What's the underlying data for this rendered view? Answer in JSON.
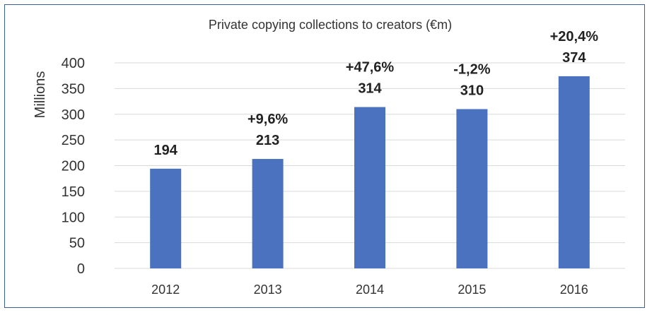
{
  "chart_data": {
    "type": "bar",
    "title": "Private copying collections to creators (€m)",
    "ylabel": "Millions",
    "xlabel": "",
    "categories": [
      "2012",
      "2013",
      "2014",
      "2015",
      "2016"
    ],
    "values": [
      194,
      213,
      314,
      310,
      374
    ],
    "value_labels": [
      "194",
      "213",
      "314",
      "310",
      "374"
    ],
    "growth_labels": [
      "",
      "+9,6%",
      "+47,6%",
      "-1,2%",
      "+20,4%"
    ],
    "ylim": [
      0,
      400
    ],
    "yticks": [
      0,
      50,
      100,
      150,
      200,
      250,
      300,
      350,
      400
    ],
    "grid": true,
    "legend": "none",
    "colors": {
      "bar": "#4a72bf",
      "frame": "#3b5f95",
      "grid": "#d9d9d9"
    }
  }
}
